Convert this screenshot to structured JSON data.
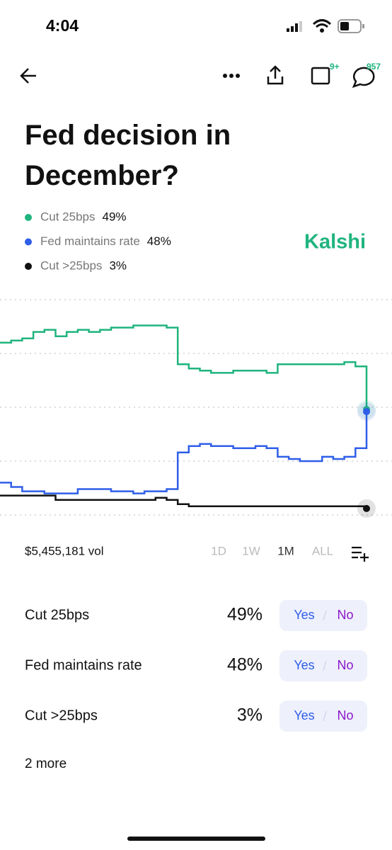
{
  "status_bar": {
    "time": "4:04"
  },
  "nav": {
    "calendar_badge": "9+",
    "comments_badge": "957"
  },
  "title": "Fed decision in December?",
  "legend": [
    {
      "name": "Cut 25bps",
      "percent": "49%"
    },
    {
      "name": "Fed maintains rate",
      "percent": "48%"
    },
    {
      "name": "Cut >25bps",
      "percent": "3%"
    }
  ],
  "brand": "Kalshi",
  "chart_data": {
    "type": "line",
    "ylim": [
      0,
      100
    ],
    "yticks": [
      0,
      25,
      50,
      75,
      100
    ],
    "grid": true,
    "series": [
      {
        "name": "Cut 25bps",
        "color": "#1fb47e",
        "values": [
          80,
          81,
          82,
          85,
          86,
          83,
          85,
          86,
          85,
          86,
          87,
          87,
          88,
          88,
          88,
          87,
          70,
          68,
          67,
          66,
          66,
          67,
          67,
          67,
          66,
          70,
          70,
          70,
          70,
          70,
          70,
          71,
          69,
          49
        ]
      },
      {
        "name": "Fed maintains rate",
        "color": "#2f5ee8",
        "values": [
          15,
          13,
          11,
          11,
          10,
          10,
          10,
          12,
          12,
          12,
          11,
          11,
          10,
          11,
          11,
          12,
          29,
          32,
          33,
          32,
          32,
          31,
          31,
          32,
          31,
          27,
          26,
          25,
          25,
          27,
          26,
          27,
          31,
          48
        ]
      },
      {
        "name": "Cut >25bps",
        "color": "#111111",
        "values": [
          9,
          9,
          9,
          9,
          9,
          7,
          7,
          7,
          7,
          7,
          7,
          7,
          7,
          7,
          8,
          7,
          5,
          4,
          4,
          4,
          4,
          4,
          4,
          4,
          4,
          4,
          4,
          4,
          4,
          4,
          4,
          4,
          4,
          3
        ]
      }
    ]
  },
  "volume": "$5,455,181 vol",
  "ranges": [
    "1D",
    "1W",
    "1M",
    "ALL"
  ],
  "outcomes": [
    {
      "name": "Cut 25bps",
      "percent": "49%",
      "yes": "Yes",
      "no": "No"
    },
    {
      "name": "Fed maintains rate",
      "percent": "48%",
      "yes": "Yes",
      "no": "No"
    },
    {
      "name": "Cut >25bps",
      "percent": "3%",
      "yes": "Yes",
      "no": "No"
    }
  ],
  "more": "2 more"
}
